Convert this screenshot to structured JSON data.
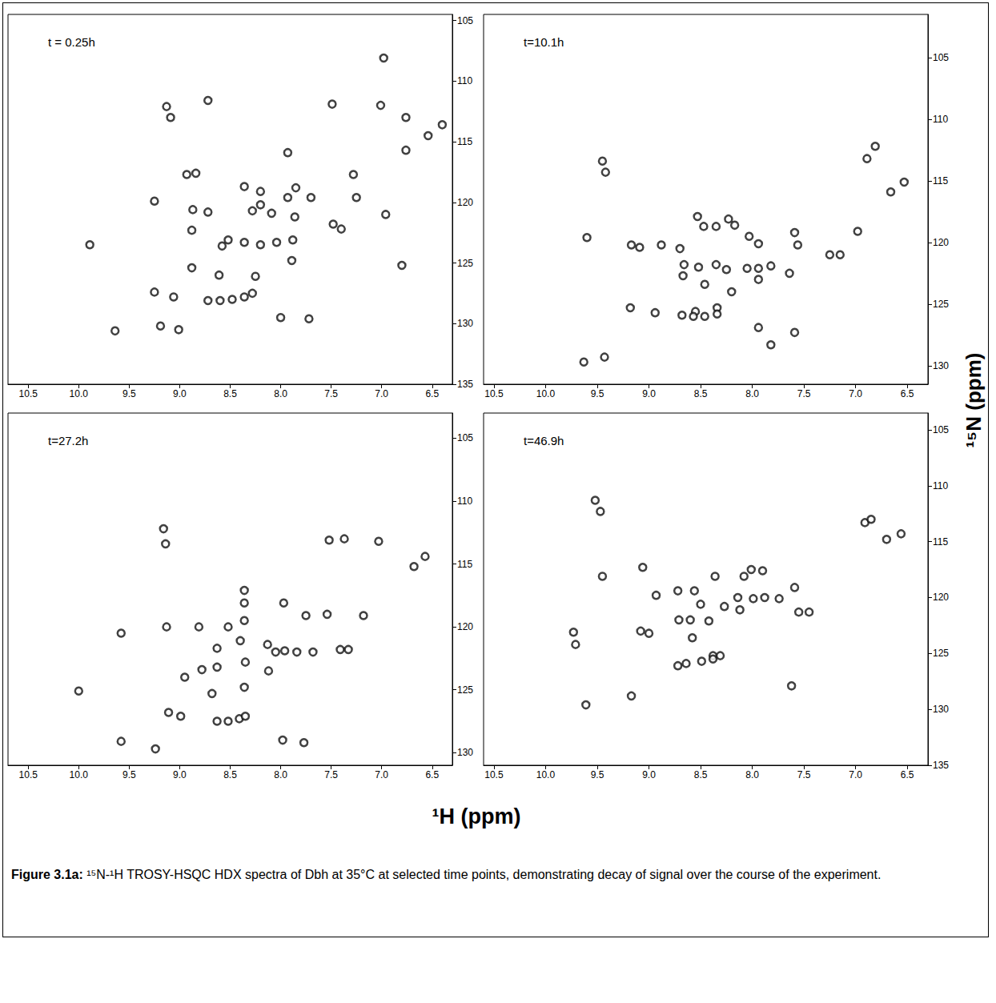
{
  "chart_data": [
    {
      "type": "scatter",
      "title": "t = 0.25h",
      "color": "#111111",
      "marker": "circle",
      "grid": false,
      "xlim": [
        10.7,
        6.3
      ],
      "ylim": [
        135,
        104.5
      ],
      "xticks": [
        10.5,
        {
          "value": 10,
          "label": "10.0"
        },
        9.5,
        {
          "value": 9,
          "label": "9.0"
        },
        8.5,
        {
          "value": 8,
          "label": "8.0"
        },
        7.5,
        {
          "value": 7,
          "label": "7.0"
        },
        6.5
      ],
      "yticks": [
        105,
        110,
        115,
        120,
        125,
        130,
        135
      ],
      "x": [
        6.98,
        9.13,
        9.09,
        8.72,
        7.49,
        7.01,
        6.76,
        6.4,
        6.54,
        6.76,
        7.93,
        7.28,
        8.93,
        8.84,
        8.36,
        8.2,
        7.85,
        7.93,
        7.7,
        9.25,
        8.87,
        8.72,
        8.09,
        8.28,
        8.2,
        7.86,
        7.48,
        7.4,
        7.25,
        6.96,
        7.88,
        8.04,
        8.2,
        8.36,
        8.52,
        8.58,
        8.88,
        8.88,
        8.25,
        8.61,
        7.89,
        6.8,
        9.89,
        9.25,
        9.06,
        8.72,
        8.6,
        8.48,
        8.36,
        8.28,
        8.0,
        7.72,
        9.19,
        9.01,
        9.64
      ],
      "values": [
        108.1,
        112.1,
        113.0,
        111.6,
        111.9,
        112.0,
        113.0,
        113.6,
        114.5,
        115.7,
        115.9,
        117.7,
        117.7,
        117.6,
        118.7,
        119.1,
        118.8,
        119.6,
        119.6,
        119.9,
        120.6,
        120.8,
        120.9,
        120.7,
        120.2,
        121.2,
        121.8,
        122.2,
        119.6,
        121.0,
        123.1,
        123.3,
        123.5,
        123.3,
        123.1,
        123.6,
        122.3,
        125.4,
        126.1,
        126.0,
        124.8,
        125.2,
        123.5,
        127.4,
        127.8,
        128.1,
        128.1,
        128.0,
        127.8,
        127.5,
        129.5,
        129.6,
        130.2,
        130.5,
        130.6
      ]
    },
    {
      "type": "scatter",
      "title": "t=10.1h",
      "color": "#111111",
      "marker": "circle",
      "grid": false,
      "xlim": [
        10.6,
        6.3
      ],
      "ylim": [
        131.5,
        101.5
      ],
      "xticks": [
        10.5,
        {
          "value": 10,
          "label": "10.0"
        },
        9.5,
        {
          "value": 9,
          "label": "9.0"
        },
        8.5,
        {
          "value": 8,
          "label": "8.0"
        },
        7.5,
        {
          "value": 7,
          "label": "7.0"
        },
        6.5
      ],
      "yticks": [
        105,
        110,
        115,
        120,
        125,
        130
      ],
      "x": [
        9.45,
        9.42,
        6.81,
        6.89,
        6.53,
        6.66,
        9.6,
        9.17,
        9.09,
        8.88,
        8.7,
        8.53,
        8.47,
        8.66,
        8.35,
        8.23,
        8.17,
        8.03,
        7.94,
        7.59,
        7.56,
        7.25,
        7.15,
        6.98,
        8.52,
        8.67,
        8.35,
        8.25,
        8.05,
        7.94,
        7.82,
        8.46,
        7.94,
        7.64,
        8.55,
        8.2,
        8.34,
        9.18,
        8.94,
        8.68,
        8.57,
        8.46,
        8.34,
        7.94,
        7.59,
        9.63,
        9.43,
        7.82
      ],
      "values": [
        113.4,
        114.3,
        112.2,
        113.2,
        115.1,
        115.9,
        119.6,
        120.2,
        120.4,
        120.2,
        120.5,
        117.9,
        118.7,
        121.8,
        118.7,
        118.1,
        118.6,
        119.5,
        120.1,
        119.2,
        120.2,
        121.0,
        121.0,
        119.1,
        122.0,
        122.7,
        121.8,
        122.2,
        122.1,
        122.1,
        121.9,
        123.4,
        123.0,
        122.5,
        125.6,
        124.0,
        125.3,
        125.3,
        125.7,
        125.9,
        126.0,
        126.0,
        125.8,
        126.9,
        127.3,
        129.7,
        129.3,
        128.3
      ]
    },
    {
      "type": "scatter",
      "title": "t=27.2h",
      "color": "#111111",
      "marker": "circle",
      "grid": false,
      "xlim": [
        10.7,
        6.3
      ],
      "ylim": [
        131,
        103
      ],
      "xticks": [
        10.5,
        {
          "value": 10,
          "label": "10.0"
        },
        9.5,
        {
          "value": 9,
          "label": "9.0"
        },
        8.5,
        {
          "value": 8,
          "label": "8.0"
        },
        7.5,
        {
          "value": 7,
          "label": "7.0"
        },
        6.5
      ],
      "yticks": [
        105,
        110,
        115,
        120,
        125,
        130
      ],
      "x": [
        9.16,
        9.14,
        7.52,
        7.37,
        7.03,
        6.68,
        6.57,
        8.36,
        8.36,
        7.97,
        7.54,
        9.13,
        8.81,
        8.52,
        8.36,
        7.75,
        7.18,
        9.58,
        8.4,
        8.63,
        8.13,
        8.05,
        7.96,
        7.84,
        7.68,
        7.41,
        7.33,
        8.35,
        8.12,
        8.63,
        8.78,
        8.36,
        8.95,
        10.0,
        8.68,
        9.11,
        8.99,
        8.63,
        8.52,
        8.41,
        8.35,
        7.98,
        7.77,
        9.58,
        9.24
      ],
      "values": [
        112.2,
        113.4,
        113.1,
        113.0,
        113.2,
        115.2,
        114.4,
        117.1,
        118.1,
        118.1,
        119.0,
        120.0,
        120.0,
        120.0,
        119.5,
        119.1,
        119.1,
        120.5,
        121.1,
        121.7,
        121.4,
        122.0,
        121.9,
        122.0,
        122.0,
        121.8,
        121.8,
        122.8,
        123.5,
        123.2,
        123.4,
        124.8,
        124.0,
        125.1,
        125.3,
        126.8,
        127.1,
        127.5,
        127.5,
        127.3,
        127.1,
        129.0,
        129.2,
        129.1,
        129.7
      ]
    },
    {
      "type": "scatter",
      "title": "t=46.9h",
      "color": "#111111",
      "marker": "circle",
      "grid": false,
      "xlim": [
        10.6,
        6.3
      ],
      "ylim": [
        135,
        103.5
      ],
      "xticks": [
        10.5,
        {
          "value": 10,
          "label": "10.0"
        },
        9.5,
        {
          "value": 9,
          "label": "9.0"
        },
        8.5,
        {
          "value": 8,
          "label": "8.0"
        },
        7.5,
        {
          "value": 7,
          "label": "7.0"
        },
        6.5
      ],
      "yticks": [
        105,
        110,
        115,
        120,
        125,
        130,
        135
      ],
      "x": [
        9.52,
        9.47,
        6.91,
        6.85,
        6.7,
        6.56,
        9.45,
        9.06,
        8.72,
        8.56,
        8.93,
        8.36,
        8.08,
        8.01,
        7.9,
        7.59,
        7.55,
        7.45,
        8.14,
        7.99,
        7.88,
        7.74,
        8.27,
        8.5,
        8.71,
        8.6,
        8.42,
        9.08,
        9.0,
        8.12,
        8.58,
        8.38,
        8.72,
        8.64,
        8.49,
        8.38,
        8.31,
        7.62,
        9.17,
        9.61,
        9.73,
        9.71
      ],
      "values": [
        111.3,
        112.3,
        113.3,
        113.0,
        114.8,
        114.3,
        118.1,
        117.3,
        119.4,
        119.4,
        119.8,
        118.1,
        118.1,
        117.5,
        117.6,
        119.1,
        121.3,
        121.3,
        120.0,
        120.1,
        120.0,
        120.1,
        120.8,
        120.6,
        122.0,
        122.0,
        122.1,
        123.0,
        123.2,
        121.1,
        123.6,
        125.2,
        126.1,
        125.9,
        125.7,
        125.5,
        125.2,
        127.9,
        128.8,
        129.6,
        123.1,
        124.2
      ]
    }
  ],
  "xlabel": "¹H (ppm)",
  "ylabel": "¹⁵N (ppm)",
  "caption": {
    "label": "Figure 3.1a:",
    "text": "¹⁵N-¹H TROSY-HSQC HDX spectra of Dbh at 35°C at selected time points, demonstrating decay of signal over the course of the experiment."
  }
}
